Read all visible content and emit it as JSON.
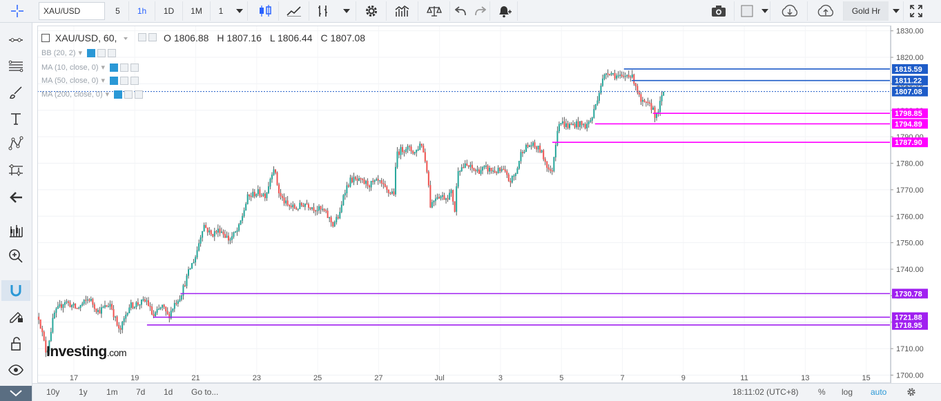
{
  "toolbar": {
    "symbol": "XAU/USD",
    "intervals": [
      "5",
      "1h",
      "1D",
      "1M",
      "1"
    ],
    "active_interval": "1h",
    "session": "Gold Hr"
  },
  "legend": {
    "title": "XAU/USD, 60,",
    "open": "O 1806.88",
    "high": "H 1807.16",
    "low": "L 1806.44",
    "close": "C 1807.08"
  },
  "indicators": [
    "BB (20, 2)",
    "MA (10, close, 0)",
    "MA (50, close, 0)",
    "MA (200, close, 0)"
  ],
  "watermark": {
    "brand": "Investing",
    "suffix": ".com"
  },
  "bottom": {
    "ranges": [
      "10y",
      "1y",
      "1m",
      "7d",
      "1d"
    ],
    "goto": "Go to...",
    "time": "18:11:02 (UTC+8)",
    "percent": "%",
    "log": "log",
    "auto": "auto"
  },
  "colors": {
    "up": "#26a69a",
    "down": "#ef5350",
    "resistance": "#1e5cc8",
    "support_near": "#ff00ff",
    "support_far": "#a020f0"
  },
  "chart_data": {
    "type": "candlestick",
    "ylim": [
      1697,
      1832
    ],
    "y_ticks": [
      1700,
      1710,
      1720,
      1730,
      1740,
      1750,
      1760,
      1770,
      1780,
      1790,
      1800,
      1810,
      1820,
      1830
    ],
    "y_tick_labels": [
      "1700.00",
      "1710.00",
      "1720.00",
      "1730.00",
      "1740.00",
      "1750.00",
      "1760.00",
      "1770.00",
      "1780.00",
      "1790.00",
      "1800.00",
      "1810.00",
      "1820.00",
      "1830.00"
    ],
    "x_labels": [
      "17",
      "19",
      "21",
      "23",
      "25",
      "27",
      "Jul",
      "3",
      "5",
      "7",
      "9",
      "11",
      "13",
      "15"
    ],
    "x_label_positions": [
      15.5,
      17.5,
      19.5,
      21.5,
      23.5,
      25.5,
      27.5,
      29.5,
      31.5,
      33.5,
      35.5,
      37.5,
      39.5,
      41.5
    ],
    "x_range": [
      14.3,
      42.3
    ],
    "x_axis_note": "x is day offset from June 1 (Jul 1 = day 30)",
    "path": [
      [
        14.35,
        1722
      ],
      [
        14.6,
        1708
      ],
      [
        14.85,
        1723
      ],
      [
        15.2,
        1728
      ],
      [
        15.6,
        1725
      ],
      [
        16.0,
        1729
      ],
      [
        16.3,
        1724
      ],
      [
        16.7,
        1727
      ],
      [
        17.0,
        1716
      ],
      [
        17.3,
        1726
      ],
      [
        17.6,
        1727
      ],
      [
        17.9,
        1728
      ],
      [
        18.1,
        1722
      ],
      [
        18.4,
        1726
      ],
      [
        18.6,
        1722
      ],
      [
        18.8,
        1727
      ],
      [
        19.0,
        1730
      ],
      [
        19.3,
        1740
      ],
      [
        19.5,
        1745
      ],
      [
        19.75,
        1757
      ],
      [
        20.0,
        1753
      ],
      [
        20.3,
        1755
      ],
      [
        20.6,
        1751
      ],
      [
        20.9,
        1755
      ],
      [
        21.2,
        1767
      ],
      [
        21.5,
        1769
      ],
      [
        21.8,
        1768
      ],
      [
        22.05,
        1779
      ],
      [
        22.25,
        1768
      ],
      [
        22.5,
        1764
      ],
      [
        22.8,
        1763
      ],
      [
        23.1,
        1765
      ],
      [
        23.4,
        1763
      ],
      [
        23.7,
        1762
      ],
      [
        24.0,
        1757
      ],
      [
        24.25,
        1761
      ],
      [
        24.35,
        1769
      ],
      [
        24.6,
        1774
      ],
      [
        24.9,
        1773
      ],
      [
        25.2,
        1772
      ],
      [
        25.5,
        1773
      ],
      [
        25.8,
        1769
      ],
      [
        26.0,
        1769
      ],
      [
        26.1,
        1784
      ],
      [
        26.4,
        1786
      ],
      [
        26.7,
        1784
      ],
      [
        26.9,
        1788
      ],
      [
        27.1,
        1777
      ],
      [
        27.2,
        1764
      ],
      [
        27.4,
        1768
      ],
      [
        27.7,
        1767
      ],
      [
        27.9,
        1769
      ],
      [
        28.0,
        1762
      ],
      [
        28.1,
        1778
      ],
      [
        28.4,
        1779
      ],
      [
        28.7,
        1777
      ],
      [
        29.0,
        1778
      ],
      [
        29.3,
        1777
      ],
      [
        29.6,
        1777
      ],
      [
        29.8,
        1773
      ],
      [
        30.0,
        1776
      ],
      [
        30.2,
        1785
      ],
      [
        30.5,
        1787
      ],
      [
        30.8,
        1785
      ],
      [
        31.0,
        1780
      ],
      [
        31.15,
        1776
      ],
      [
        31.2,
        1778
      ],
      [
        31.4,
        1796
      ],
      [
        31.7,
        1794
      ],
      [
        32.0,
        1795
      ],
      [
        32.3,
        1794
      ],
      [
        32.5,
        1797
      ],
      [
        32.8,
        1810
      ],
      [
        33.0,
        1815
      ],
      [
        33.3,
        1813
      ],
      [
        33.5,
        1812
      ],
      [
        33.7,
        1814
      ],
      [
        33.9,
        1811
      ],
      [
        34.1,
        1803
      ],
      [
        34.3,
        1802
      ],
      [
        34.5,
        1801
      ],
      [
        34.6,
        1797
      ],
      [
        34.7,
        1801
      ],
      [
        34.85,
        1807
      ]
    ],
    "candle_count": 360,
    "levels": [
      {
        "label": "1815.59",
        "value": 1815.59,
        "kind": "resistance",
        "start": 33.55
      },
      {
        "label": "1811.22",
        "value": 1811.22,
        "kind": "resistance",
        "start": 33.8
      },
      {
        "label": "1807.08",
        "value": 1807.08,
        "kind": "current",
        "start": 14.3
      },
      {
        "label": "1798.85",
        "value": 1798.85,
        "kind": "support_near",
        "start": 34.5
      },
      {
        "label": "1794.89",
        "value": 1794.89,
        "kind": "support_near",
        "start": 32.6
      },
      {
        "label": "1787.90",
        "value": 1787.9,
        "kind": "support_near",
        "start": 31.2
      },
      {
        "label": "1730.78",
        "value": 1730.78,
        "kind": "support_far",
        "start": 19.0
      },
      {
        "label": "1721.88",
        "value": 1721.88,
        "kind": "support_far",
        "start": 18.1
      },
      {
        "label": "1718.95",
        "value": 1718.95,
        "kind": "support_far",
        "start": 17.9
      }
    ]
  }
}
